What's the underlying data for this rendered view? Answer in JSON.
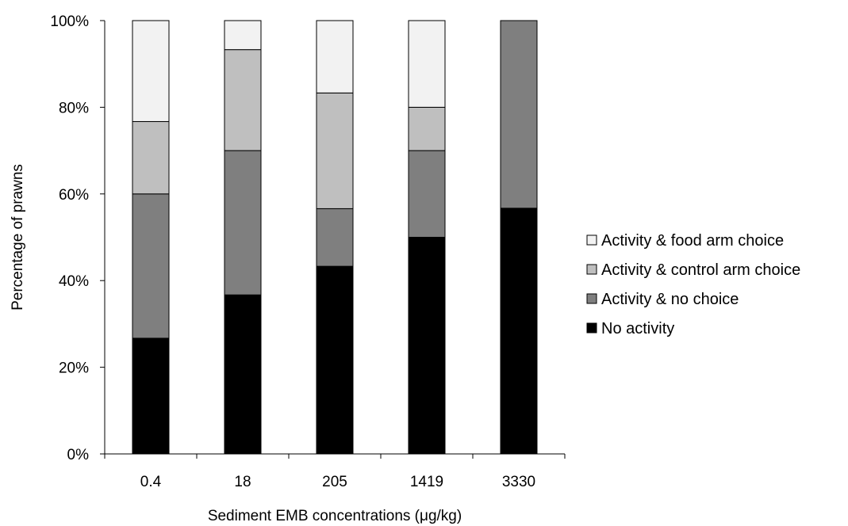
{
  "chart_data": {
    "type": "bar",
    "stacked": true,
    "stack_mode": "percent",
    "categories": [
      "0.4",
      "18",
      "205",
      "1419",
      "3330"
    ],
    "series": [
      {
        "name": "No activity",
        "color": "#000000",
        "values": [
          26.7,
          36.7,
          43.3,
          50.0,
          56.7
        ]
      },
      {
        "name": "Activity & no choice",
        "color": "#7f7f7f",
        "values": [
          33.3,
          33.3,
          13.3,
          20.0,
          43.3
        ]
      },
      {
        "name": "Activity & control arm choice",
        "color": "#bfbfbf",
        "values": [
          16.7,
          23.3,
          26.7,
          10.0,
          0
        ]
      },
      {
        "name": "Activity & food arm choice",
        "color": "#f2f2f2",
        "values": [
          23.3,
          6.7,
          16.7,
          20.0,
          0
        ]
      }
    ],
    "xlabel": "Sediment EMB concentrations (μg/kg)",
    "ylabel": "Percentage of prawns",
    "ylim": [
      0,
      100
    ],
    "yticks": [
      "0%",
      "20%",
      "40%",
      "60%",
      "80%",
      "100%"
    ],
    "legend_position": "right",
    "legend_order": [
      "Activity & food arm choice",
      "Activity & control arm choice",
      "Activity & no choice",
      "No activity"
    ],
    "grid": false
  }
}
